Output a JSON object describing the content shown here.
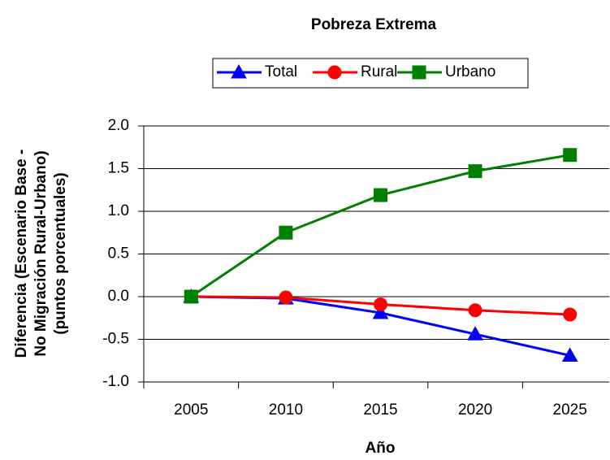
{
  "chart_data": {
    "type": "line",
    "title": "Pobreza Extrema",
    "xlabel": "Año",
    "ylabel": [
      "Diferencia (Escenario Base -",
      "No Migración Rural-Urbano)",
      "(puntos porcentuales)"
    ],
    "categories": [
      "2005",
      "2010",
      "2015",
      "2020",
      "2025"
    ],
    "series": [
      {
        "name": "Total",
        "color": "#0000ff",
        "marker": "triangle",
        "values": [
          0,
          -0.02,
          -0.19,
          -0.44,
          -0.69
        ]
      },
      {
        "name": "Rural",
        "color": "#ff0000",
        "marker": "circle",
        "values": [
          0,
          -0.01,
          -0.09,
          -0.16,
          -0.21
        ]
      },
      {
        "name": "Urbano",
        "color": "#008000",
        "marker": "square",
        "values": [
          0,
          0.75,
          1.19,
          1.47,
          1.66
        ]
      }
    ],
    "ylim": [
      -1,
      2
    ],
    "yticks": [
      {
        "value": -1,
        "label": "-1.0"
      },
      -0.5,
      {
        "value": 0,
        "label": "0.0"
      },
      0.5,
      {
        "value": 1,
        "label": "1.0"
      },
      1.5,
      {
        "value": 2,
        "label": "2.0"
      }
    ],
    "grid": true,
    "legend": "top"
  }
}
